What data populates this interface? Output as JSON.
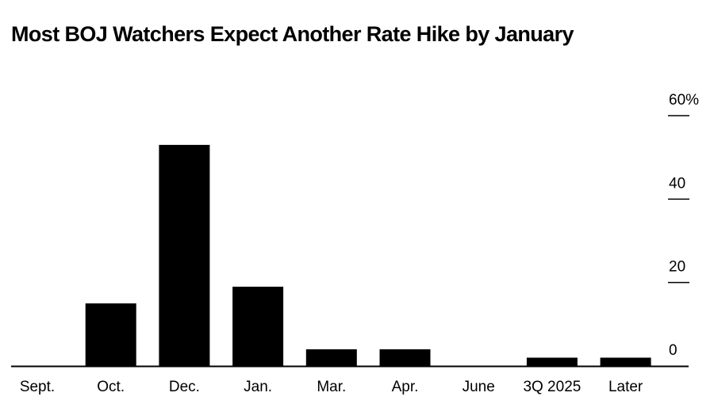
{
  "chart_data": {
    "type": "bar",
    "title": "Most BOJ Watchers Expect Another Rate Hike by January",
    "categories": [
      "Sept.",
      "Oct.",
      "Dec.",
      "Jan.",
      "Mar.",
      "Apr.",
      "June",
      "3Q 2025",
      "Later"
    ],
    "values": [
      0,
      15,
      53,
      19,
      4,
      4,
      0,
      2,
      2
    ],
    "yticks": [
      {
        "value": 0,
        "label": "0"
      },
      {
        "value": 20,
        "label": "20"
      },
      {
        "value": 40,
        "label": "40"
      },
      {
        "value": 60,
        "label": "60%"
      }
    ],
    "ylim": [
      0,
      60
    ],
    "xlabel": "",
    "ylabel": "",
    "bar_color": "#000000",
    "grid": false,
    "y_axis_side": "right"
  }
}
